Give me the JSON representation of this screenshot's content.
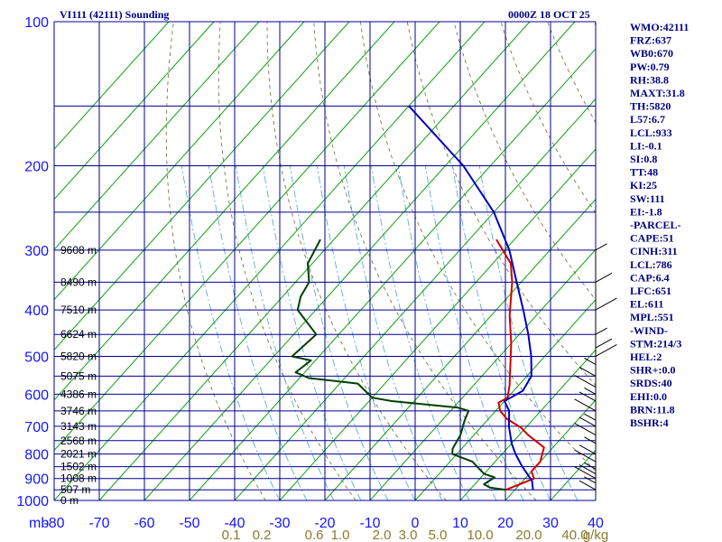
{
  "chart_data": {
    "type": "line",
    "title_left": "VI111 (42111) Sounding",
    "title_right": "0000Z 18 OCT 25",
    "x_axis": {
      "unit_label": "mb",
      "ticks": [
        -80,
        -70,
        -60,
        -50,
        -40,
        -30,
        -20,
        -10,
        0,
        10,
        20,
        30,
        40
      ],
      "range": [
        -80,
        40
      ]
    },
    "y_axis": {
      "ticks": [
        100,
        200,
        300,
        400,
        500,
        600,
        700,
        800,
        900,
        1000
      ],
      "range": [
        100,
        1000
      ],
      "scale": "log"
    },
    "mixing_ratio_labels": [
      "0.1",
      "0.2",
      "0.6",
      "1.0",
      "2.0",
      "3.0",
      "5.0",
      "10.0",
      "20.0",
      "40.0"
    ],
    "mixing_ratio_unit": "g/kg",
    "height_labels": [
      {
        "text": "9608 m",
        "p": 300
      },
      {
        "text": "8490 m",
        "p": 350
      },
      {
        "text": "7510 m",
        "p": 400
      },
      {
        "text": "6624 m",
        "p": 450
      },
      {
        "text": "5820 m",
        "p": 500
      },
      {
        "text": "5075 m",
        "p": 550
      },
      {
        "text": "4386 m",
        "p": 600
      },
      {
        "text": "3746 m",
        "p": 650
      },
      {
        "text": "3143 m",
        "p": 700
      },
      {
        "text": "2568 m",
        "p": 750
      },
      {
        "text": "2021 m",
        "p": 800
      },
      {
        "text": "1502 m",
        "p": 850
      },
      {
        "text": "1008 m",
        "p": 900
      },
      {
        "text": "507 m",
        "p": 950
      },
      {
        "text": "0 m",
        "p": 1000
      }
    ],
    "series": [
      {
        "color": "#d00000",
        "points": [
          [
            -34,
            285
          ],
          [
            -26,
            320
          ],
          [
            -22,
            350
          ],
          [
            -16,
            410
          ],
          [
            -10,
            470
          ],
          [
            -6,
            520
          ],
          [
            -2,
            575
          ],
          [
            0,
            610
          ],
          [
            -1,
            625
          ],
          [
            1,
            650
          ],
          [
            4,
            675
          ],
          [
            9,
            705
          ],
          [
            12,
            730
          ],
          [
            18,
            775
          ],
          [
            20,
            830
          ],
          [
            20,
            870
          ],
          [
            22,
            900
          ],
          [
            18,
            950
          ]
        ]
      },
      {
        "color": "#0000c0",
        "points": [
          [
            -80,
            150
          ],
          [
            -56,
            200
          ],
          [
            -40,
            250
          ],
          [
            -29,
            300
          ],
          [
            -21,
            350
          ],
          [
            -14,
            400
          ],
          [
            -8,
            450
          ],
          [
            -3,
            500
          ],
          [
            1,
            550
          ],
          [
            2,
            590
          ],
          [
            0,
            620
          ],
          [
            3,
            650
          ],
          [
            6,
            700
          ],
          [
            10,
            760
          ],
          [
            13,
            800
          ],
          [
            17,
            850
          ],
          [
            22,
            910
          ],
          [
            24,
            950
          ]
        ]
      },
      {
        "color": "#004000",
        "points": [
          [
            -73,
            285
          ],
          [
            -71,
            320
          ],
          [
            -67,
            350
          ],
          [
            -66,
            375
          ],
          [
            -64,
            400
          ],
          [
            -55,
            450
          ],
          [
            -56,
            500
          ],
          [
            -51,
            510
          ],
          [
            -52,
            540
          ],
          [
            -48,
            555
          ],
          [
            -36,
            570
          ],
          [
            -30,
            610
          ],
          [
            -25,
            620
          ],
          [
            -9,
            640
          ],
          [
            -6,
            650
          ],
          [
            -5,
            680
          ],
          [
            -3,
            730
          ],
          [
            -2,
            780
          ],
          [
            -1,
            800
          ],
          [
            5,
            830
          ],
          [
            8,
            860
          ],
          [
            10,
            880
          ],
          [
            13,
            895
          ],
          [
            12,
            925
          ],
          [
            14,
            940
          ],
          [
            18,
            950
          ]
        ]
      }
    ],
    "stats": [
      "WMO:42111",
      "FRZ:637",
      "WB0:670",
      "PW:0.79",
      "RH:38.8",
      "MAXT:31.8",
      "TH:5820",
      "L57:6.7",
      "LCL:933",
      "LI:-0.1",
      "SI:0.8",
      "TT:48",
      "KI:25",
      "SW:111",
      "EI:-1.8",
      "-PARCEL-",
      "CAPE:51",
      "CINH:311",
      "LCL:786",
      "CAP:6.4",
      "LFC:651",
      "EL:611",
      "MPL:551",
      "-WIND-",
      "STM:214/3",
      "HEL:2",
      "SHR+:0.0",
      "SRDS:40",
      "EHI:0.0",
      "BRN:11.8",
      "BSHR:4"
    ]
  }
}
